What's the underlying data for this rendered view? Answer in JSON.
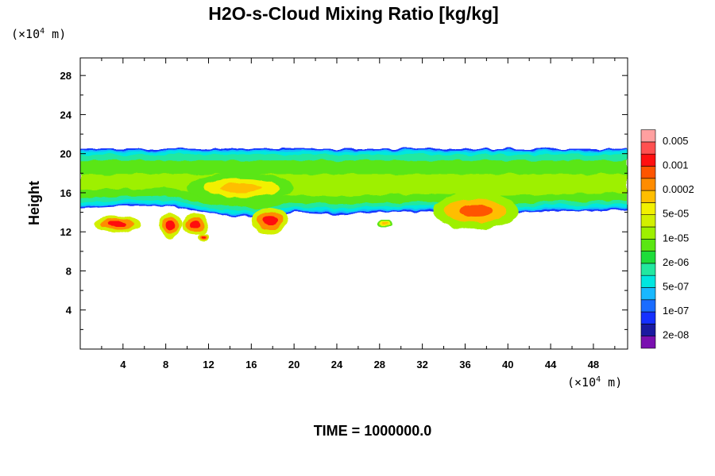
{
  "chart_data": {
    "type": "heatmap",
    "title": "H2O-s-Cloud Mixing Ratio [kg/kg]",
    "ylabel": "Height",
    "x_unit": {
      "prefix": "(×10",
      "exponent": "4",
      "suffix": " m)"
    },
    "y_unit": {
      "prefix": "(×10",
      "exponent": "4",
      "suffix": " m)"
    },
    "xlim": [
      0,
      51.2
    ],
    "ylim": [
      0,
      29.8
    ],
    "x_ticks": [
      4,
      8,
      12,
      16,
      20,
      24,
      28,
      32,
      36,
      40,
      44,
      48
    ],
    "y_ticks": [
      4,
      8,
      12,
      16,
      20,
      24,
      28
    ],
    "x_tick_labels": [
      "4",
      "8",
      "12",
      "16",
      "20",
      "24",
      "28",
      "32",
      "36",
      "40",
      "44",
      "48"
    ],
    "y_tick_labels": [
      "4",
      "8",
      "12",
      "16",
      "20",
      "24",
      "28"
    ],
    "grid": false,
    "colorbar": {
      "levels": [
        {
          "label": "2e-08",
          "color": "#7a10b0"
        },
        {
          "label": "",
          "color": "#1a1aa0"
        },
        {
          "label": "1e-07",
          "color": "#1530ff"
        },
        {
          "label": "",
          "color": "#1a6cff"
        },
        {
          "label": "5e-07",
          "color": "#18b8ff"
        },
        {
          "label": "",
          "color": "#00e6e0"
        },
        {
          "label": "2e-06",
          "color": "#22e8a0"
        },
        {
          "label": "",
          "color": "#1edc3a"
        },
        {
          "label": "1e-05",
          "color": "#5ae612"
        },
        {
          "label": "",
          "color": "#9ef000"
        },
        {
          "label": "5e-05",
          "color": "#d2f000"
        },
        {
          "label": "",
          "color": "#f2f000"
        },
        {
          "label": "0.0002",
          "color": "#ffbe00"
        },
        {
          "label": "",
          "color": "#ff8c00"
        },
        {
          "label": "0.001",
          "color": "#ff5500"
        },
        {
          "label": "",
          "color": "#ff1010"
        },
        {
          "label": "0.005",
          "color": "#ff5050"
        },
        {
          "label": "",
          "color": "#ffa0a0"
        }
      ]
    },
    "field": {
      "layer_top": 20.5,
      "layer_bottom_by_x": [
        [
          0,
          14.4
        ],
        [
          3,
          14.6
        ],
        [
          8,
          14.7
        ],
        [
          10,
          14.3
        ],
        [
          12,
          13.9
        ],
        [
          14,
          13.6
        ],
        [
          17,
          13.4
        ],
        [
          20,
          14.0
        ],
        [
          24,
          13.8
        ],
        [
          28,
          14.0
        ],
        [
          32,
          14.1
        ],
        [
          35,
          14.0
        ],
        [
          40,
          13.9
        ],
        [
          44,
          14.1
        ],
        [
          51.2,
          14.2
        ]
      ],
      "blobs": [
        {
          "x": [
            1.3,
            5.6
          ],
          "y": [
            12.0,
            13.6
          ],
          "level": 13,
          "core_level": 15
        },
        {
          "x": [
            7.4,
            9.5
          ],
          "y": [
            11.3,
            14.0
          ],
          "level": 13,
          "core_level": 15
        },
        {
          "x": [
            9.5,
            12.0
          ],
          "y": [
            11.7,
            13.9
          ],
          "level": 13,
          "core_level": 15
        },
        {
          "x": [
            11.0,
            12.0
          ],
          "y": [
            11.0,
            11.9
          ],
          "level": 13,
          "core_level": 15
        },
        {
          "x": [
            16.0,
            19.5
          ],
          "y": [
            11.8,
            14.5
          ],
          "level": 13,
          "core_level": 15
        },
        {
          "x": [
            27.8,
            29.2
          ],
          "y": [
            12.5,
            13.2
          ],
          "level": 11,
          "core_level": 12
        },
        {
          "x": [
            33.0,
            41.0
          ],
          "y": [
            12.3,
            16.0
          ],
          "level": 12,
          "core_level": 14
        },
        {
          "x": [
            10.0,
            20.0
          ],
          "y": [
            15.0,
            18.0
          ],
          "level": 11,
          "core_level": 12
        }
      ]
    }
  },
  "footer": {
    "time_label": "TIME = 1000000.0"
  }
}
